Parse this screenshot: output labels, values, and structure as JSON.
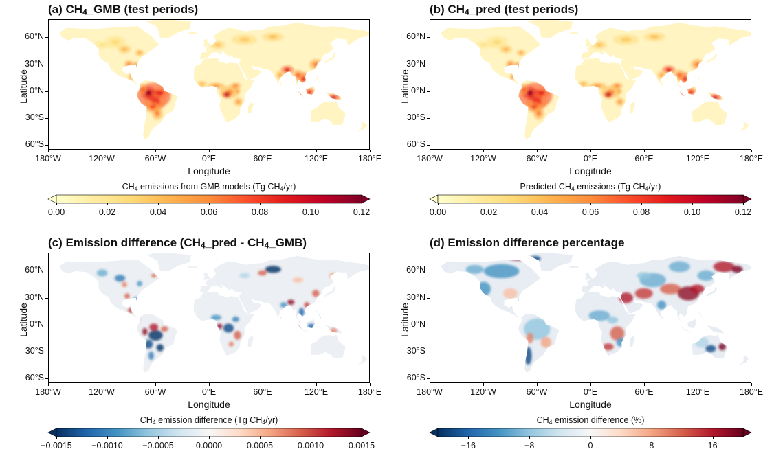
{
  "panels": [
    {
      "id": "a",
      "title_pre": "(a) CH",
      "title_sub": "4",
      "title_post": "_GMB (test periods)",
      "ylabel": "Latitude",
      "xlabel": "Longitude",
      "cb_pre": "CH",
      "cb_sub": "4",
      "cb_mid": " emissions from GMB models (Tg CH",
      "cb_sub2": "4",
      "cb_post": "/yr)",
      "cmap": "YlOrRd",
      "cb_ticks": [
        "0.00",
        "0.02",
        "0.04",
        "0.06",
        "0.08",
        "0.10",
        "0.12"
      ],
      "cb_range": [
        0,
        0.12
      ]
    },
    {
      "id": "b",
      "title_pre": "(b) CH",
      "title_sub": "4",
      "title_post": "_pred (test periods)",
      "ylabel": "Latitude",
      "xlabel": "Longitude",
      "cb_pre": "Predicted CH",
      "cb_sub": "4",
      "cb_mid": " emissions (Tg CH",
      "cb_sub2": "4",
      "cb_post": "/yr)",
      "cmap": "YlOrRd",
      "cb_ticks": [
        "0.00",
        "0.02",
        "0.04",
        "0.06",
        "0.08",
        "0.10",
        "0.12"
      ],
      "cb_range": [
        0,
        0.12
      ]
    },
    {
      "id": "c",
      "title_pre": "(c) Emission difference (CH",
      "title_sub": "4",
      "title_post": "_pred - CH",
      "title_sub2": "4",
      "title_post2": "_GMB)",
      "ylabel": "Latitude",
      "xlabel": "Longitude",
      "cb_pre": "CH",
      "cb_sub": "4",
      "cb_mid": " emission difference (Tg CH",
      "cb_sub2": "4",
      "cb_post": "/yr)",
      "cmap": "RdBu_r",
      "cb_ticks": [
        "−0.0015",
        "−0.0010",
        "−0.0005",
        "0.0000",
        "0.0005",
        "0.0010",
        "0.0015"
      ],
      "cb_range": [
        -0.0015,
        0.0015
      ]
    },
    {
      "id": "d",
      "title_pre": "(d) Emission difference percentage",
      "title_sub": "",
      "title_post": "",
      "ylabel": "Latitude",
      "xlabel": "Longitude",
      "cb_pre": "CH",
      "cb_sub": "4",
      "cb_mid": " emission difference (%)",
      "cb_sub2": "",
      "cb_post": "",
      "cmap": "RdBu_r",
      "cb_ticks": [
        "−16",
        "−8",
        "0",
        "8",
        "16"
      ],
      "cb_range": [
        -20,
        20
      ]
    }
  ],
  "lat_ticks": [
    "60°N",
    "30°N",
    "0°N",
    "30°S",
    "60°S"
  ],
  "lon_ticks": [
    "180°W",
    "120°W",
    "60°W",
    "0°E",
    "60°E",
    "120°E",
    "180°E"
  ],
  "colors": {
    "ylorrd": [
      "#ffffcc",
      "#ffeda0",
      "#fed976",
      "#feb24c",
      "#fd8d3c",
      "#fc4e2a",
      "#e31a1c",
      "#bd0026",
      "#800026"
    ],
    "rdbu": [
      "#053061",
      "#2166ac",
      "#4393c3",
      "#92c5de",
      "#d1e5f0",
      "#f7f7f7",
      "#fddbc7",
      "#f4a582",
      "#d6604d",
      "#b2182b",
      "#67001f"
    ]
  }
}
